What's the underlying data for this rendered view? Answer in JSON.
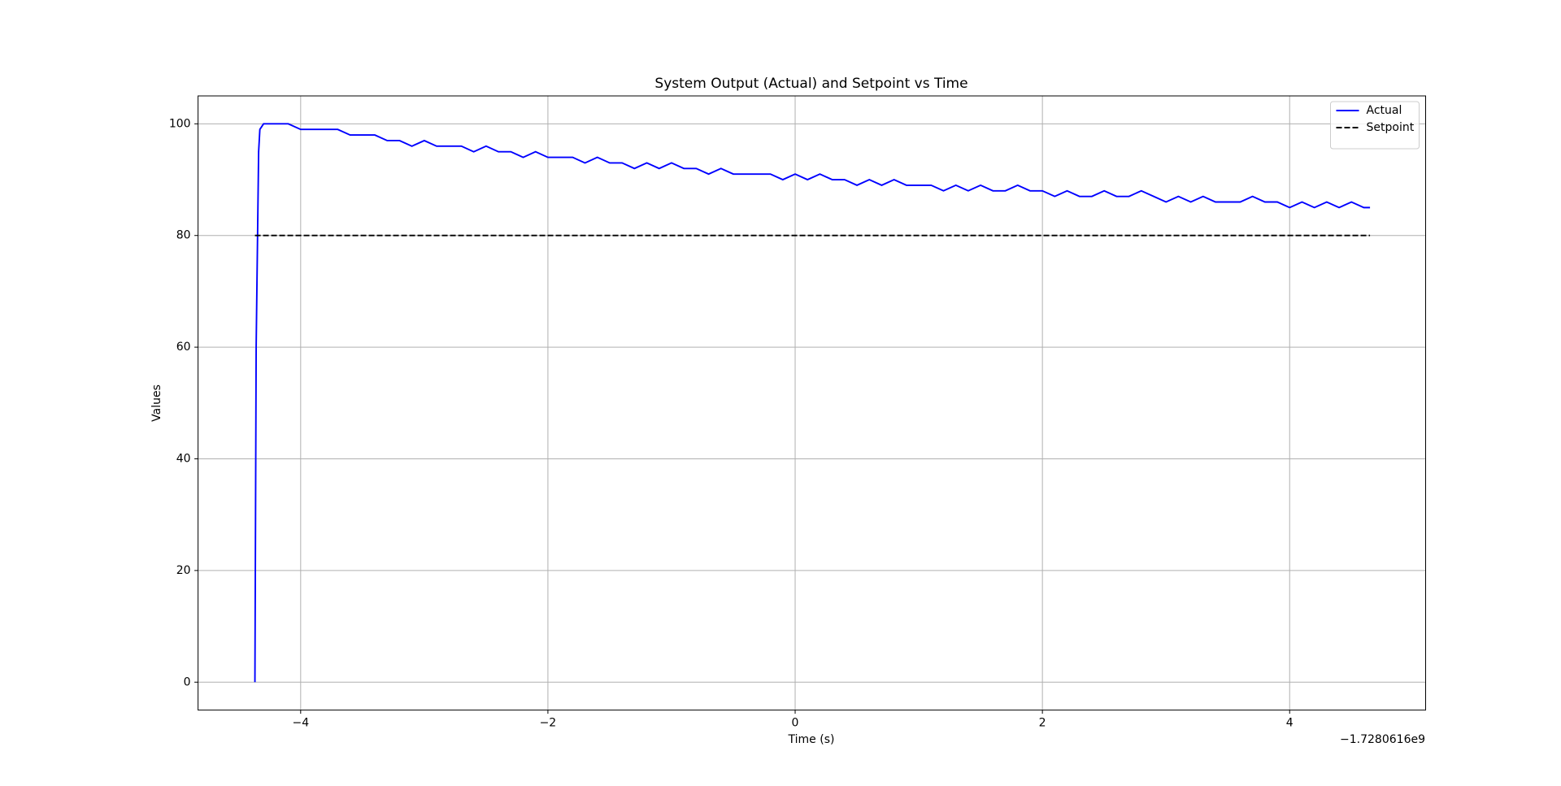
{
  "chart_data": {
    "type": "line",
    "title": "System Output (Actual) and Setpoint vs Time",
    "x_label": "Time (s)",
    "y_label": "Values",
    "x_offset_label": "−1.7280616e9",
    "xlim": [
      -4.83,
      5.1
    ],
    "ylim": [
      -5,
      105
    ],
    "xticks": [
      {
        "value": -4,
        "label": "−4"
      },
      {
        "value": -2,
        "label": "−2"
      },
      0,
      2,
      4
    ],
    "yticks": [
      0,
      20,
      40,
      60,
      80,
      100
    ],
    "grid": true,
    "legend": "upper right",
    "series": [
      {
        "name": "Actual",
        "color": "#0000ff",
        "style": "solid",
        "x": [
          -4.37,
          -4.36,
          -4.34,
          -4.33,
          -4.3,
          -4.2,
          -4.1,
          -4.0,
          -3.9,
          -3.8,
          -3.7,
          -3.6,
          -3.5,
          -3.4,
          -3.3,
          -3.2,
          -3.1,
          -3.0,
          -2.9,
          -2.8,
          -2.7,
          -2.6,
          -2.5,
          -2.4,
          -2.3,
          -2.2,
          -2.1,
          -2.0,
          -1.9,
          -1.8,
          -1.7,
          -1.6,
          -1.5,
          -1.4,
          -1.3,
          -1.2,
          -1.1,
          -1.0,
          -0.9,
          -0.8,
          -0.7,
          -0.6,
          -0.5,
          -0.4,
          -0.3,
          -0.2,
          -0.1,
          0.0,
          0.1,
          0.2,
          0.3,
          0.4,
          0.5,
          0.6,
          0.7,
          0.8,
          0.9,
          1.0,
          1.1,
          1.2,
          1.3,
          1.4,
          1.5,
          1.6,
          1.7,
          1.8,
          1.9,
          2.0,
          2.1,
          2.2,
          2.3,
          2.4,
          2.5,
          2.6,
          2.7,
          2.8,
          2.9,
          3.0,
          3.1,
          3.2,
          3.3,
          3.4,
          3.5,
          3.6,
          3.7,
          3.8,
          3.9,
          4.0,
          4.1,
          4.2,
          4.3,
          4.4,
          4.5,
          4.6,
          4.65
        ],
        "values": [
          0,
          60,
          95,
          99,
          100,
          100,
          100,
          99,
          99,
          99,
          99,
          98,
          98,
          98,
          97,
          97,
          96,
          97,
          96,
          96,
          96,
          95,
          96,
          95,
          95,
          94,
          95,
          94,
          94,
          94,
          93,
          94,
          93,
          93,
          92,
          93,
          92,
          93,
          92,
          92,
          91,
          92,
          91,
          91,
          91,
          91,
          90,
          91,
          90,
          91,
          90,
          90,
          89,
          90,
          89,
          90,
          89,
          89,
          89,
          88,
          89,
          88,
          89,
          88,
          88,
          89,
          88,
          88,
          87,
          88,
          87,
          87,
          88,
          87,
          87,
          88,
          87,
          86,
          87,
          86,
          87,
          86,
          86,
          86,
          87,
          86,
          86,
          85,
          86,
          85,
          86,
          85,
          86,
          85,
          85
        ]
      },
      {
        "name": "Setpoint",
        "color": "#000000",
        "style": "dashed",
        "x": [
          -4.37,
          4.65
        ],
        "values": [
          80,
          80
        ]
      }
    ]
  }
}
